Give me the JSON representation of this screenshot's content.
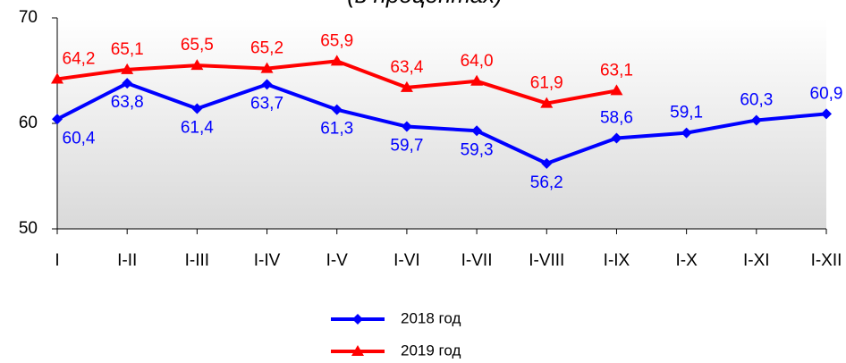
{
  "chart_data": {
    "type": "line",
    "title": "(в процентах)",
    "categories": [
      "I",
      "I-II",
      "I-III",
      "I-IV",
      "I-V",
      "I-VI",
      "I-VII",
      "I-VIII",
      "I-IX",
      "I-X",
      "I-XI",
      "I-XII"
    ],
    "series": [
      {
        "name": "2018 год",
        "color": "#0000ff",
        "marker": "diamond",
        "values": [
          60.4,
          63.8,
          61.4,
          63.7,
          61.3,
          59.7,
          59.3,
          56.2,
          58.6,
          59.1,
          60.3,
          60.9
        ],
        "value_labels": [
          "60,4",
          "63,8",
          "61,4",
          "63,7",
          "61,3",
          "59,7",
          "59,3",
          "56,2",
          "58,6",
          "59,1",
          "60,3",
          "60,9"
        ]
      },
      {
        "name": "2019 год",
        "color": "#ff0000",
        "marker": "triangle",
        "values": [
          64.2,
          65.1,
          65.5,
          65.2,
          65.9,
          63.4,
          64.0,
          61.9,
          63.1,
          null,
          null,
          null
        ],
        "value_labels": [
          "64,2",
          "65,1",
          "65,5",
          "65,2",
          "65,9",
          "63,4",
          "64,0",
          "61,9",
          "63,1",
          null,
          null,
          null
        ]
      }
    ],
    "ylim": [
      50,
      70
    ],
    "yticks": [
      50,
      60,
      70
    ],
    "legend": "bottom"
  }
}
